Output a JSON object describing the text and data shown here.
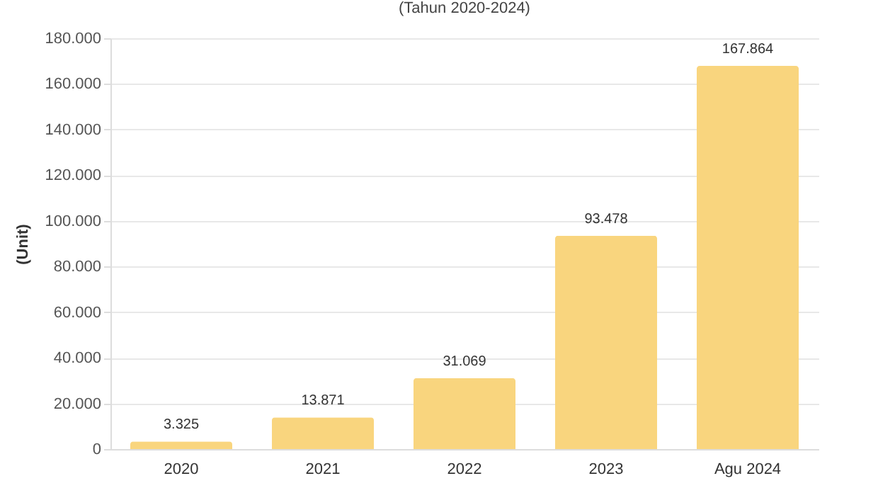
{
  "chart_data": {
    "type": "bar",
    "subtitle": "(Tahun 2020-2024)",
    "ylabel": "(Unit)",
    "categories": [
      "2020",
      "2021",
      "2022",
      "2023",
      "Agu 2024"
    ],
    "values": [
      3325,
      13871,
      31069,
      93478,
      167864
    ],
    "value_labels": [
      "3.325",
      "13.871",
      "31.069",
      "93.478",
      "167.864"
    ],
    "color": "#f9d57e",
    "ylim": [
      0,
      180000
    ],
    "yticks": [
      0,
      {
        "value": 20000,
        "label": "20.000"
      },
      {
        "value": 40000,
        "label": "40.000"
      },
      {
        "value": 60000,
        "label": "60.000"
      },
      {
        "value": 80000,
        "label": "80.000"
      },
      {
        "value": 100000,
        "label": "100.000"
      },
      {
        "value": 120000,
        "label": "120.000"
      },
      {
        "value": 140000,
        "label": "140.000"
      },
      {
        "value": 160000,
        "label": "160.000"
      },
      {
        "value": 180000,
        "label": "180.000"
      }
    ],
    "grid": "y"
  }
}
